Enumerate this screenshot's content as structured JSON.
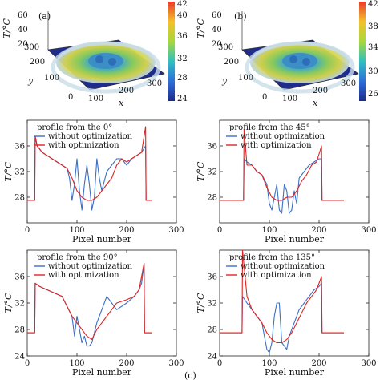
{
  "figure_label": "(c)",
  "panels3d": [
    {
      "label": "(a)",
      "ylabel": "T/°C",
      "zticks": [
        "60",
        "40",
        "20"
      ],
      "xaxis_label": "x",
      "yaxis_label": "y",
      "xticks": [
        "0",
        "100",
        "200",
        "300"
      ],
      "yticks": [
        "0",
        "100",
        "200",
        "300"
      ],
      "colorbar_ticks": [
        "42",
        "40",
        "36",
        "32",
        "28",
        "24"
      ]
    },
    {
      "label": "(b)",
      "ylabel": "T/°C",
      "zticks": [
        "60",
        "40",
        "20"
      ],
      "xaxis_label": "x",
      "yaxis_label": "y",
      "xticks": [
        "0",
        "100",
        "200",
        "300"
      ],
      "yticks": [
        "0",
        "100",
        "200",
        "300"
      ],
      "colorbar_ticks": [
        "42",
        "38",
        "34",
        "30",
        "26"
      ]
    }
  ],
  "colors": {
    "without": "#3a6fc4",
    "with": "#e02424"
  },
  "chart_data": [
    {
      "type": "line",
      "title": "profile from the 0°",
      "xlabel": "Pixel number",
      "ylabel": "T/°C",
      "xlim": [
        0,
        300
      ],
      "ylim": [
        24,
        40
      ],
      "xticks": [
        "0",
        "100",
        "200",
        "300"
      ],
      "yticks": [
        "28",
        "32",
        "36"
      ],
      "series": [
        {
          "name": "without optimization",
          "x": [
            0,
            15,
            16,
            20,
            30,
            40,
            50,
            60,
            70,
            80,
            85,
            90,
            95,
            100,
            105,
            110,
            115,
            120,
            125,
            130,
            135,
            140,
            145,
            150,
            160,
            170,
            180,
            190,
            200,
            210,
            220,
            230,
            238,
            239,
            250
          ],
          "y": [
            27.5,
            27.5,
            37.5,
            36,
            35,
            34.5,
            34,
            33.5,
            33,
            32.5,
            31,
            27.5,
            30,
            34,
            29,
            26,
            30,
            33,
            30,
            26,
            28,
            34,
            31,
            29,
            32,
            33,
            34,
            34,
            33,
            34,
            34.5,
            35,
            36,
            27.5,
            27.5
          ]
        },
        {
          "name": "with optimization",
          "x": [
            0,
            15,
            16,
            20,
            30,
            40,
            50,
            60,
            70,
            80,
            90,
            100,
            110,
            120,
            130,
            140,
            150,
            160,
            170,
            180,
            190,
            200,
            210,
            220,
            230,
            238,
            239,
            250
          ],
          "y": [
            27.5,
            27.5,
            37.5,
            36,
            35,
            34.5,
            34,
            33.5,
            33,
            32.5,
            31,
            29,
            28,
            27.5,
            27.5,
            28,
            29,
            30,
            31,
            33,
            34,
            33.5,
            34,
            34.5,
            35,
            39,
            27.5,
            27.5
          ]
        }
      ]
    },
    {
      "type": "line",
      "title": "profile from the 45°",
      "xlabel": "Pixel number",
      "ylabel": "T/°C",
      "xlim": [
        0,
        300
      ],
      "ylim": [
        24,
        40
      ],
      "xticks": [
        "0",
        "100",
        "200",
        "300"
      ],
      "yticks": [
        "28",
        "32",
        "36"
      ],
      "series": [
        {
          "name": "without optimization",
          "x": [
            0,
            48,
            49,
            55,
            65,
            75,
            85,
            95,
            100,
            105,
            110,
            115,
            120,
            125,
            130,
            135,
            140,
            145,
            150,
            155,
            160,
            170,
            180,
            190,
            200,
            205,
            206,
            250
          ],
          "y": [
            27.5,
            27.5,
            34,
            33.5,
            33,
            32,
            31.5,
            30,
            27,
            26,
            28,
            30,
            26,
            25.5,
            30,
            29,
            25.5,
            26,
            29,
            27,
            31,
            32,
            33,
            33.5,
            34,
            34,
            27.5,
            27.5
          ]
        },
        {
          "name": "with optimization",
          "x": [
            0,
            48,
            49,
            55,
            65,
            75,
            85,
            95,
            105,
            115,
            125,
            135,
            145,
            155,
            165,
            175,
            185,
            195,
            205,
            206,
            250
          ],
          "y": [
            27.5,
            27.5,
            38.5,
            33,
            33,
            32,
            31.5,
            29.5,
            28,
            27.5,
            27.5,
            28,
            28,
            29,
            30.5,
            31.5,
            33,
            33.5,
            36,
            27.5,
            27.5
          ]
        }
      ]
    },
    {
      "type": "line",
      "title": "profile from the 90°",
      "xlabel": "Pixel number",
      "ylabel": "T/°C",
      "xlim": [
        0,
        300
      ],
      "ylim": [
        24,
        40
      ],
      "xticks": [
        "0",
        "100",
        "200",
        "300"
      ],
      "yticks": [
        "24",
        "28",
        "32",
        "36"
      ],
      "series": [
        {
          "name": "without optimization",
          "x": [
            0,
            15,
            16,
            25,
            40,
            55,
            70,
            80,
            90,
            95,
            100,
            105,
            110,
            115,
            120,
            125,
            130,
            140,
            150,
            160,
            170,
            180,
            200,
            215,
            225,
            230,
            235,
            236,
            250
          ],
          "y": [
            27.5,
            27.5,
            35,
            34.5,
            34,
            33.5,
            33,
            31.5,
            30,
            27,
            30,
            28,
            26,
            27,
            25.5,
            25.5,
            26,
            29,
            31,
            33,
            32,
            31,
            32,
            33,
            34,
            35,
            38,
            27.5,
            27.5
          ]
        },
        {
          "name": "with optimization",
          "x": [
            0,
            15,
            16,
            25,
            40,
            55,
            70,
            80,
            90,
            100,
            110,
            120,
            130,
            140,
            150,
            160,
            170,
            180,
            200,
            215,
            225,
            235,
            236,
            250
          ],
          "y": [
            27.5,
            27.5,
            35,
            34.5,
            34,
            33.5,
            33,
            31.5,
            30,
            29,
            28,
            27,
            26.5,
            28,
            29,
            30,
            31,
            32,
            32.5,
            33,
            34,
            38,
            27.5,
            27.5
          ]
        }
      ]
    },
    {
      "type": "line",
      "title": "profile from the 135°",
      "xlabel": "Pixel number",
      "ylabel": "T/°C",
      "xlim": [
        0,
        300
      ],
      "ylim": [
        24,
        40
      ],
      "xticks": [
        "0",
        "100",
        "200",
        "300"
      ],
      "yticks": [
        "24",
        "28",
        "32",
        "36"
      ],
      "series": [
        {
          "name": "without optimization",
          "x": [
            0,
            45,
            46,
            55,
            65,
            75,
            85,
            90,
            95,
            100,
            105,
            110,
            115,
            120,
            125,
            130,
            135,
            140,
            150,
            160,
            170,
            180,
            190,
            200,
            205,
            206,
            250
          ],
          "y": [
            27.5,
            27.5,
            33,
            32,
            31,
            30,
            29,
            27,
            25,
            24.5,
            26,
            30,
            32,
            32,
            26,
            25.5,
            25,
            27,
            29,
            31,
            32,
            33,
            34,
            34.5,
            35,
            27.5,
            27.5
          ]
        },
        {
          "name": "with optimization",
          "x": [
            0,
            45,
            46,
            55,
            65,
            75,
            85,
            95,
            105,
            115,
            125,
            135,
            145,
            155,
            165,
            175,
            185,
            195,
            205,
            206,
            250
          ],
          "y": [
            27.5,
            27.5,
            40,
            33,
            31,
            30,
            29,
            27.5,
            26.5,
            26,
            26,
            26.5,
            27.5,
            29,
            30.5,
            32,
            33,
            34,
            36,
            27.5,
            27.5
          ]
        }
      ]
    }
  ]
}
